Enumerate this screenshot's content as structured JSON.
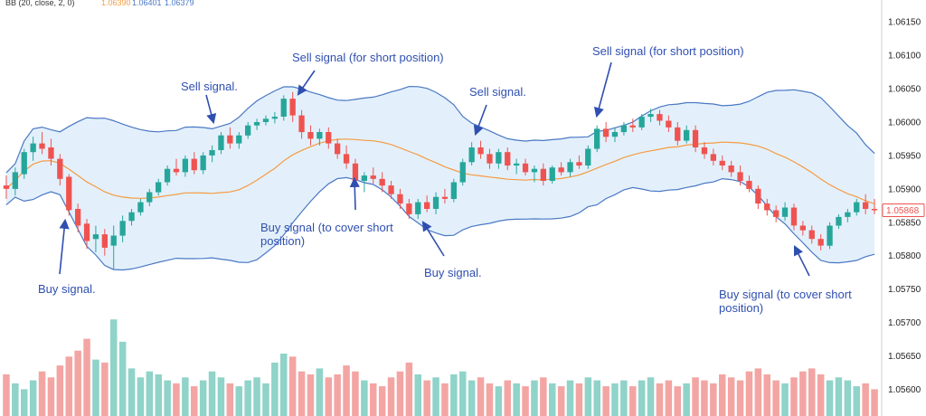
{
  "indicator": {
    "label": "BB (20, close, 2, 0)",
    "values": [
      "1.06390",
      "1.06401",
      "1.06379"
    ],
    "colors": [
      "#f59b42",
      "#4a78c4",
      "#4a78c4"
    ]
  },
  "chart_data": {
    "type": "candlestick",
    "instrument_price_label": "1.05868",
    "ylim": [
      1.0556,
      1.0618
    ],
    "yticks": [
      "1.06150",
      "1.06100",
      "1.06050",
      "1.06000",
      "1.05950",
      "1.05900",
      "1.05850",
      "1.05800",
      "1.05750",
      "1.05700",
      "1.05650",
      "1.05600"
    ],
    "candles_ohlc": [
      [
        1.05905,
        1.0592,
        1.05885,
        1.059
      ],
      [
        1.059,
        1.05932,
        1.0589,
        1.05925
      ],
      [
        1.05922,
        1.0596,
        1.05915,
        1.05955
      ],
      [
        1.05955,
        1.05978,
        1.05942,
        1.05968
      ],
      [
        1.05968,
        1.05985,
        1.05952,
        1.0596
      ],
      [
        1.05962,
        1.05975,
        1.05935,
        1.05945
      ],
      [
        1.05945,
        1.05952,
        1.05905,
        1.05915
      ],
      [
        1.05918,
        1.05922,
        1.0586,
        1.05868
      ],
      [
        1.0587,
        1.05878,
        1.05835,
        1.05845
      ],
      [
        1.05848,
        1.05855,
        1.0581,
        1.05822
      ],
      [
        1.05825,
        1.05845,
        1.05805,
        1.05832
      ],
      [
        1.05832,
        1.0584,
        1.058,
        1.05812
      ],
      [
        1.05815,
        1.05845,
        1.0578,
        1.0583
      ],
      [
        1.0583,
        1.0586,
        1.0582,
        1.05852
      ],
      [
        1.05852,
        1.0587,
        1.05845,
        1.05865
      ],
      [
        1.05865,
        1.05885,
        1.0586,
        1.0588
      ],
      [
        1.0588,
        1.059,
        1.05874,
        1.05895
      ],
      [
        1.05895,
        1.05915,
        1.0589,
        1.0591
      ],
      [
        1.0591,
        1.05935,
        1.05905,
        1.0593
      ],
      [
        1.0593,
        1.05945,
        1.0592,
        1.05925
      ],
      [
        1.05925,
        1.0595,
        1.05918,
        1.05945
      ],
      [
        1.05945,
        1.05955,
        1.05922,
        1.05928
      ],
      [
        1.05928,
        1.05955,
        1.05922,
        1.0595
      ],
      [
        1.0595,
        1.05965,
        1.0594,
        1.05958
      ],
      [
        1.05958,
        1.05985,
        1.05952,
        1.0598
      ],
      [
        1.0598,
        1.05992,
        1.0596,
        1.05968
      ],
      [
        1.05968,
        1.05985,
        1.0596,
        1.0598
      ],
      [
        1.0598,
        1.06,
        1.05975,
        1.05995
      ],
      [
        1.05995,
        1.06005,
        1.05988,
        1.06
      ],
      [
        1.06,
        1.0601,
        1.05995,
        1.06005
      ],
      [
        1.06005,
        1.06015,
        1.05998,
        1.06008
      ],
      [
        1.06008,
        1.0604,
        1.06002,
        1.06035
      ],
      [
        1.06035,
        1.06045,
        1.06,
        1.0601
      ],
      [
        1.0601,
        1.06018,
        1.05975,
        1.05985
      ],
      [
        1.05985,
        1.05995,
        1.05965,
        1.05975
      ],
      [
        1.05975,
        1.0599,
        1.05965,
        1.05985
      ],
      [
        1.05985,
        1.05992,
        1.0596,
        1.05968
      ],
      [
        1.05968,
        1.05975,
        1.05945,
        1.05952
      ],
      [
        1.05952,
        1.05965,
        1.0593,
        1.05938
      ],
      [
        1.05938,
        1.05945,
        1.05905,
        1.05912
      ],
      [
        1.05912,
        1.05925,
        1.05895,
        1.0592
      ],
      [
        1.0592,
        1.05932,
        1.05908,
        1.05915
      ],
      [
        1.05915,
        1.05925,
        1.05895,
        1.05905
      ],
      [
        1.05905,
        1.05912,
        1.05885,
        1.05892
      ],
      [
        1.05892,
        1.059,
        1.0587,
        1.05878
      ],
      [
        1.05878,
        1.05885,
        1.05855,
        1.05862
      ],
      [
        1.05862,
        1.05885,
        1.05855,
        1.0588
      ],
      [
        1.0588,
        1.0589,
        1.05865,
        1.0587
      ],
      [
        1.0587,
        1.05895,
        1.05862,
        1.05888
      ],
      [
        1.05888,
        1.059,
        1.05878,
        1.05885
      ],
      [
        1.05885,
        1.05915,
        1.0588,
        1.0591
      ],
      [
        1.0591,
        1.05945,
        1.05905,
        1.0594
      ],
      [
        1.0594,
        1.0597,
        1.05935,
        1.05962
      ],
      [
        1.05962,
        1.05972,
        1.05945,
        1.05952
      ],
      [
        1.05952,
        1.0596,
        1.0593,
        1.05938
      ],
      [
        1.05938,
        1.0596,
        1.0593,
        1.05955
      ],
      [
        1.05955,
        1.05962,
        1.05928,
        1.05935
      ],
      [
        1.05935,
        1.05945,
        1.05922,
        1.05938
      ],
      [
        1.05938,
        1.05945,
        1.0592,
        1.05925
      ],
      [
        1.05925,
        1.05935,
        1.0591,
        1.0593
      ],
      [
        1.0593,
        1.05938,
        1.05905,
        1.05912
      ],
      [
        1.05912,
        1.05935,
        1.05908,
        1.05932
      ],
      [
        1.05932,
        1.0594,
        1.0592,
        1.05925
      ],
      [
        1.05925,
        1.05945,
        1.05918,
        1.0594
      ],
      [
        1.0594,
        1.0595,
        1.0593,
        1.05935
      ],
      [
        1.05935,
        1.05965,
        1.0593,
        1.0596
      ],
      [
        1.0596,
        1.05995,
        1.05955,
        1.0599
      ],
      [
        1.0599,
        1.06,
        1.0597,
        1.05978
      ],
      [
        1.05978,
        1.05992,
        1.0597,
        1.05985
      ],
      [
        1.05985,
        1.06,
        1.0598,
        1.05995
      ],
      [
        1.05995,
        1.06005,
        1.05985,
        1.05992
      ],
      [
        1.05992,
        1.06012,
        1.05988,
        1.06008
      ],
      [
        1.06008,
        1.0602,
        1.06,
        1.06012
      ],
      [
        1.06012,
        1.06018,
        1.05995,
        1.06002
      ],
      [
        1.06002,
        1.0601,
        1.05985,
        1.05992
      ],
      [
        1.05992,
        1.06,
        1.05965,
        1.05972
      ],
      [
        1.05972,
        1.05995,
        1.05968,
        1.05988
      ],
      [
        1.05988,
        1.05995,
        1.05955,
        1.05962
      ],
      [
        1.05962,
        1.0597,
        1.05945,
        1.05952
      ],
      [
        1.05952,
        1.0596,
        1.05935,
        1.05942
      ],
      [
        1.05942,
        1.0595,
        1.05928,
        1.05935
      ],
      [
        1.05935,
        1.05942,
        1.05918,
        1.05925
      ],
      [
        1.05925,
        1.05935,
        1.05905,
        1.05912
      ],
      [
        1.05912,
        1.0592,
        1.05895,
        1.059
      ],
      [
        1.059,
        1.05905,
        1.0587,
        1.05878
      ],
      [
        1.05878,
        1.05885,
        1.0586,
        1.05868
      ],
      [
        1.05868,
        1.05875,
        1.0585,
        1.05858
      ],
      [
        1.05858,
        1.0588,
        1.05852,
        1.05872
      ],
      [
        1.05872,
        1.05878,
        1.05838,
        1.05845
      ],
      [
        1.05845,
        1.05852,
        1.0583,
        1.05838
      ],
      [
        1.05838,
        1.05845,
        1.05818,
        1.05825
      ],
      [
        1.05825,
        1.05832,
        1.05808,
        1.05815
      ],
      [
        1.05815,
        1.0585,
        1.0581,
        1.05845
      ],
      [
        1.05845,
        1.05862,
        1.0584,
        1.05858
      ],
      [
        1.05858,
        1.0587,
        1.0585,
        1.05865
      ],
      [
        1.05865,
        1.05885,
        1.0586,
        1.0588
      ],
      [
        1.0588,
        1.05892,
        1.05862,
        1.0587
      ],
      [
        1.0587,
        1.05885,
        1.05862,
        1.05868
      ]
    ],
    "volume": [
      28,
      22,
      18,
      24,
      30,
      26,
      34,
      40,
      44,
      52,
      38,
      36,
      65,
      50,
      32,
      26,
      30,
      28,
      24,
      22,
      26,
      20,
      24,
      30,
      26,
      22,
      20,
      24,
      26,
      22,
      36,
      42,
      40,
      30,
      28,
      32,
      26,
      28,
      34,
      30,
      24,
      22,
      20,
      26,
      30,
      36,
      28,
      24,
      26,
      22,
      28,
      30,
      24,
      26,
      22,
      20,
      24,
      22,
      20,
      24,
      26,
      22,
      20,
      24,
      22,
      26,
      24,
      20,
      22,
      24,
      20,
      24,
      26,
      22,
      24,
      20,
      22,
      26,
      24,
      22,
      28,
      26,
      24,
      30,
      32,
      28,
      24,
      22,
      26,
      30,
      32,
      28,
      24,
      26,
      24,
      20,
      22,
      18
    ],
    "volume_max": 70,
    "annotations": [
      {
        "text": "Sell signal.",
        "lines": [
          "Sell signal."
        ],
        "target": 22
      },
      {
        "text": "Sell signal (for short position)",
        "lines": [
          "Sell signal (for short position)"
        ],
        "target": 31
      },
      {
        "text": "Sell signal.",
        "lines": [
          "Sell signal."
        ],
        "target": 52
      },
      {
        "text": "Sell signal (for short position)",
        "lines": [
          "Sell signal (for short position)"
        ],
        "target": 66
      },
      {
        "text": "Buy signal.",
        "lines": [
          "Buy signal."
        ],
        "target": 7
      },
      {
        "text": "Buy signal (to cover short position)",
        "lines": [
          "Buy signal (to cover short",
          "position)"
        ],
        "target": 39
      },
      {
        "text": "Buy signal.",
        "lines": [
          "Buy signal."
        ],
        "target": 46
      },
      {
        "text": "Buy signal (to cover short position)",
        "lines": [
          "Buy signal (to cover short",
          "position)"
        ],
        "target": 87
      }
    ],
    "colors": {
      "up": "#26a69a",
      "down": "#ef5350",
      "band_line": "#4a78c4",
      "band_fill": "#e3f0fb",
      "basis": "#f59b42",
      "annotation": "#2f4fb0",
      "volume_up": "#8fd3c9",
      "volume_down": "#f3a5a3",
      "price_label": "#ef5350"
    }
  }
}
